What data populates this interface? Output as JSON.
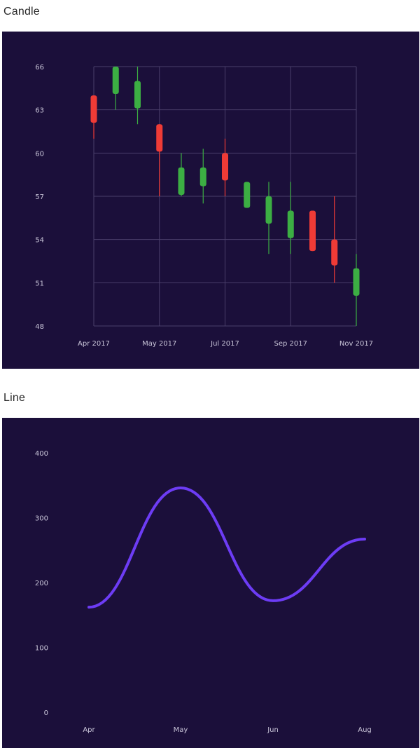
{
  "labels": {
    "candle": "Candle",
    "line": "Line"
  },
  "colors": {
    "background": "#1b0f3a",
    "grid": "#4a3f6a",
    "up": "#3cae43",
    "down": "#ef3b36",
    "line": "#6d3cf5"
  },
  "chart_data": [
    {
      "type": "candlestick",
      "title": "Candle",
      "grid": true,
      "ylim": [
        48,
        66
      ],
      "y_ticks": [
        "48",
        "51",
        "54",
        "57",
        "60",
        "63",
        "66"
      ],
      "x_ticks": [
        "Apr 2017",
        "May 2017",
        "Jul 2017",
        "Sep 2017",
        "Nov 2017"
      ],
      "candles": [
        {
          "open": 64,
          "close": 62.1,
          "high": 64,
          "low": 61
        },
        {
          "open": 64.1,
          "close": 66,
          "high": 66,
          "low": 63
        },
        {
          "open": 63.1,
          "close": 65,
          "high": 66,
          "low": 62
        },
        {
          "open": 62,
          "close": 60.1,
          "high": 62,
          "low": 57
        },
        {
          "open": 57.1,
          "close": 59,
          "high": 60,
          "low": 57
        },
        {
          "open": 57.7,
          "close": 59,
          "high": 60.3,
          "low": 56.5
        },
        {
          "open": 60,
          "close": 58.1,
          "high": 61,
          "low": 57
        },
        {
          "open": 56.2,
          "close": 58,
          "high": 58,
          "low": 56.2
        },
        {
          "open": 55.1,
          "close": 57,
          "high": 58,
          "low": 53
        },
        {
          "open": 54.1,
          "close": 56,
          "high": 58,
          "low": 53
        },
        {
          "open": 56,
          "close": 53.2,
          "high": 56,
          "low": 53.2
        },
        {
          "open": 54,
          "close": 52.2,
          "high": 57,
          "low": 51
        },
        {
          "open": 50.1,
          "close": 52,
          "high": 53,
          "low": 48
        }
      ]
    },
    {
      "type": "line",
      "title": "Line",
      "grid": false,
      "ylim": [
        0,
        400
      ],
      "y_ticks": [
        "0",
        "100",
        "200",
        "300",
        "400"
      ],
      "categories": [
        "Apr",
        "May",
        "Jun",
        "Aug"
      ],
      "values": [
        162,
        346,
        172,
        267
      ]
    }
  ]
}
